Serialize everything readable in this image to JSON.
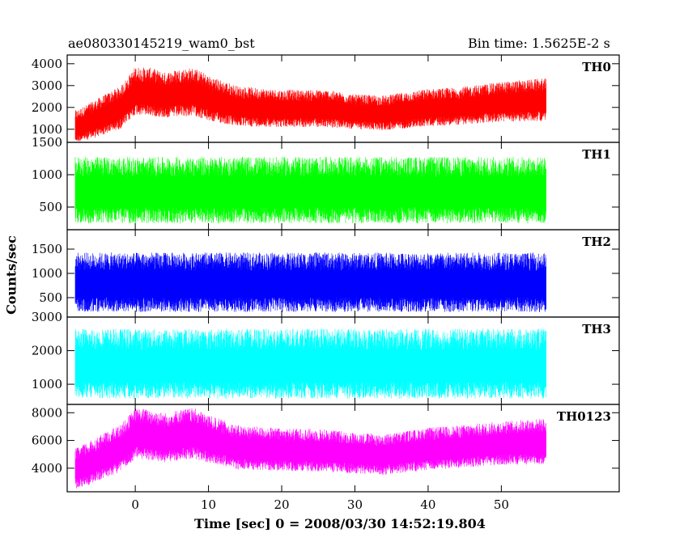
{
  "header": {
    "title_left": "ae080330145219_wam0_bst",
    "title_right": "Bin time: 1.5625E-2 s"
  },
  "chart_data": {
    "type": "line",
    "xlabel": "Time [sec] 0 = 2008/03/30 14:52:19.804",
    "ylabel": "Counts/sec",
    "xlim": [
      -9.3,
      66.1
    ],
    "x_ticks": [
      0,
      10,
      20,
      30,
      40,
      50
    ],
    "x_range_data": [
      -8.2,
      56.0
    ],
    "panels": [
      {
        "name": "TH0",
        "color": "#ff0000",
        "ylim": [
          400,
          4400
        ],
        "y_ticks": [
          1000,
          2000,
          3000,
          4000
        ],
        "x": [
          -8,
          -6,
          -4,
          -2,
          0,
          2,
          4,
          6,
          8,
          10,
          14,
          20,
          26,
          30,
          34,
          40,
          44,
          50,
          56
        ],
        "mean": [
          1100,
          1350,
          1650,
          1950,
          2700,
          2650,
          2500,
          2600,
          2650,
          2350,
          2000,
          1900,
          1900,
          1750,
          1700,
          1950,
          2000,
          2200,
          2300
        ],
        "spread": [
          600,
          700,
          750,
          800,
          900,
          900,
          850,
          900,
          900,
          850,
          750,
          700,
          700,
          650,
          650,
          700,
          700,
          750,
          800
        ]
      },
      {
        "name": "TH1",
        "color": "#00ff00",
        "ylim": [
          150,
          1500
        ],
        "y_ticks": [
          500,
          1000,
          1500
        ],
        "x": [
          -8,
          56
        ],
        "mean": [
          730,
          730
        ],
        "spread": [
          420,
          420
        ]
      },
      {
        "name": "TH2",
        "color": "#0000ff",
        "ylim": [
          100,
          1900
        ],
        "y_ticks": [
          500,
          1000,
          1500
        ],
        "x": [
          -8,
          56
        ],
        "mean": [
          780,
          780
        ],
        "spread": [
          500,
          500
        ]
      },
      {
        "name": "TH3",
        "color": "#00ffff",
        "ylim": [
          400,
          3000
        ],
        "y_ticks": [
          1000,
          2000,
          3000
        ],
        "x": [
          -8,
          56
        ],
        "mean": [
          1550,
          1550
        ],
        "spread": [
          850,
          850
        ]
      },
      {
        "name": "TH0123",
        "color": "#ff00ff",
        "ylim": [
          2300,
          8600
        ],
        "y_ticks": [
          4000,
          6000,
          8000
        ],
        "x": [
          -8,
          -6,
          -4,
          -2,
          0,
          2,
          4,
          6,
          8,
          10,
          14,
          20,
          26,
          30,
          34,
          40,
          44,
          50,
          56
        ],
        "mean": [
          3900,
          4350,
          4850,
          5350,
          6400,
          6300,
          6100,
          6300,
          6400,
          6000,
          5400,
          5250,
          5200,
          5000,
          4900,
          5300,
          5450,
          5700,
          5850
        ],
        "spread": [
          1200,
          1300,
          1350,
          1400,
          1500,
          1500,
          1450,
          1500,
          1500,
          1400,
          1300,
          1250,
          1250,
          1200,
          1200,
          1250,
          1250,
          1300,
          1350
        ]
      }
    ]
  }
}
